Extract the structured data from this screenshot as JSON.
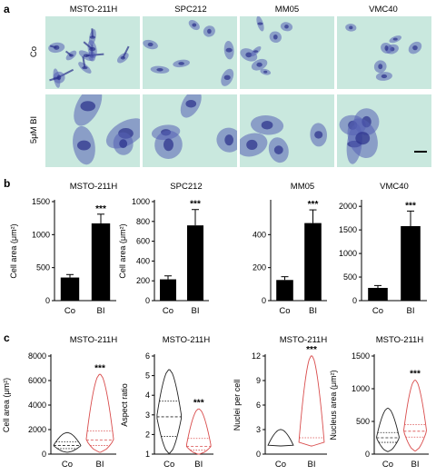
{
  "panel_labels": {
    "a": "a",
    "b": "b",
    "c": "c"
  },
  "panel_a": {
    "column_labels": [
      "MSTO-211H",
      "SPC212",
      "MM05",
      "VMC40"
    ],
    "row_labels": [
      "Co",
      "5μM BI"
    ],
    "colors": {
      "background": "#c9e8de",
      "stain": "#5560b4",
      "stain_dark": "#2a2f8a"
    }
  },
  "chart_data": [
    {
      "id": "b1",
      "type": "bar",
      "title": "MSTO-211H",
      "categories": [
        "Co",
        "BI"
      ],
      "values": [
        350,
        1170
      ],
      "errors": [
        45,
        140
      ],
      "ylabel": "Cell area (μm²)",
      "ylim": [
        0,
        1500
      ],
      "yticks": [
        0,
        500,
        1000,
        1500
      ],
      "significance": "***",
      "color": "#000000"
    },
    {
      "id": "b2",
      "type": "bar",
      "title": "SPC212",
      "categories": [
        "Co",
        "BI"
      ],
      "values": [
        215,
        760
      ],
      "errors": [
        35,
        160
      ],
      "ylabel": "Cell area (μm²)",
      "ylim": [
        0,
        1000
      ],
      "yticks": [
        0,
        200,
        400,
        600,
        800,
        1000
      ],
      "significance": "***",
      "color": "#000000"
    },
    {
      "id": "b3",
      "type": "bar",
      "title": "MM05",
      "categories": [
        "Co",
        "BI"
      ],
      "values": [
        125,
        470
      ],
      "errors": [
        20,
        80
      ],
      "ylabel": "",
      "ylim": [
        0,
        600
      ],
      "yticks": [
        0,
        200,
        400
      ],
      "significance": "***",
      "color": "#000000"
    },
    {
      "id": "b4",
      "type": "bar",
      "title": "VMC40",
      "categories": [
        "Co",
        "BI"
      ],
      "values": [
        270,
        1580
      ],
      "errors": [
        50,
        320
      ],
      "ylabel": "",
      "ylim": [
        0,
        2100
      ],
      "yticks": [
        0,
        500,
        1000,
        1500,
        2000
      ],
      "significance": "***",
      "color": "#000000"
    },
    {
      "id": "c1",
      "type": "violin",
      "title": "MSTO-211H",
      "categories": [
        "Co",
        "BI"
      ],
      "ylabel": "Cell area (μm²)",
      "ylim": [
        0,
        8000
      ],
      "yticks": [
        0,
        2000,
        4000,
        6000,
        8000
      ],
      "significance": "***",
      "colors": [
        "#222222",
        "#d94c4c"
      ],
      "distributions": [
        {
          "min": 150,
          "q1": 450,
          "median": 700,
          "q3": 1000,
          "max": 1750
        },
        {
          "min": 150,
          "q1": 700,
          "median": 1150,
          "q3": 1900,
          "max": 6500
        }
      ]
    },
    {
      "id": "c2",
      "type": "violin",
      "title": "MSTO-211H",
      "categories": [
        "Co",
        "BI"
      ],
      "ylabel": "Aspect ratio",
      "ylim": [
        1,
        6
      ],
      "yticks": [
        1,
        2,
        3,
        4,
        5,
        6
      ],
      "significance": "***",
      "colors": [
        "#222222",
        "#d94c4c"
      ],
      "distributions": [
        {
          "min": 1.05,
          "q1": 1.9,
          "median": 2.9,
          "q3": 3.7,
          "max": 5.3
        },
        {
          "min": 1.0,
          "q1": 1.2,
          "median": 1.4,
          "q3": 1.8,
          "max": 3.3
        }
      ]
    },
    {
      "id": "c3",
      "type": "violin",
      "title": "MSTO-211H",
      "categories": [
        "Co",
        "BI"
      ],
      "ylabel": "Nuclei per cell",
      "ylim": [
        0,
        12
      ],
      "yticks": [
        0,
        3,
        6,
        9,
        12
      ],
      "significance": "***",
      "colors": [
        "#222222",
        "#d94c4c"
      ],
      "distributions": [
        {
          "min": 1,
          "q1": 1,
          "median": 1,
          "q3": 1,
          "max": 3
        },
        {
          "min": 1,
          "q1": 1,
          "median": 1,
          "q3": 2,
          "max": 12
        }
      ]
    },
    {
      "id": "c4",
      "type": "violin",
      "title": "MSTO-211H",
      "categories": [
        "Co",
        "BI"
      ],
      "ylabel": "Nucleus area (μm²)",
      "ylim": [
        0,
        1500
      ],
      "yticks": [
        0,
        500,
        1000,
        1500
      ],
      "significance": "***",
      "colors": [
        "#222222",
        "#d94c4c"
      ],
      "distributions": [
        {
          "min": 40,
          "q1": 180,
          "median": 250,
          "q3": 330,
          "max": 700
        },
        {
          "min": 50,
          "q1": 260,
          "median": 350,
          "q3": 450,
          "max": 1130
        }
      ]
    }
  ]
}
